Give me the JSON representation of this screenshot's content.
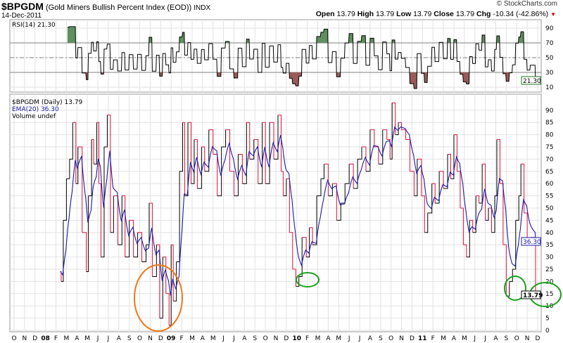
{
  "header": {
    "symbol": "$BPGDM",
    "name": "(Gold Miners Bullish Percent Index (EOD))",
    "exchange": "INDX",
    "date": "14-Dec-2011",
    "copyright": "© StockCharts.com",
    "open_label": "Open",
    "open": "13.79",
    "high_label": "High",
    "high": "13.79",
    "low_label": "Low",
    "low": "13.79",
    "close_label": "Close",
    "close": "13.79",
    "chg_label": "Chg",
    "chg": "-10.34 (-42.86%)"
  },
  "rsi_panel": {
    "legend": "RSI(14) 21.30",
    "value_tag": "21.30",
    "ticks": [
      "90",
      "70",
      "50",
      "30",
      "10"
    ]
  },
  "main_panel": {
    "legend_price": "$BPGDM (Daily) 13.79",
    "legend_ema": "EMA(20) 36.30",
    "legend_volume": "Volume undef",
    "ema_tag": "36.30",
    "close_tag": "13.79"
  },
  "colors": {
    "up": "#000000",
    "down": "#e0103a",
    "ema": "#1a1aa8",
    "overbought": "#5f8f5f",
    "oversold": "#9a5a5a",
    "circle_orange": "#f07818",
    "circle_green": "#1aa01a"
  },
  "chart_data": {
    "type": "line",
    "title": "$BPGDM (Gold Miners Bullish Percent Index (EOD))",
    "x_unit": "months since Oct 2007",
    "x_tick_labels": [
      "O",
      "N",
      "D",
      "08",
      "F",
      "M",
      "A",
      "M",
      "J",
      "J",
      "A",
      "S",
      "O",
      "N",
      "D",
      "09",
      "F",
      "M",
      "A",
      "M",
      "J",
      "J",
      "A",
      "S",
      "O",
      "N",
      "D",
      "10",
      "F",
      "M",
      "A",
      "M",
      "J",
      "J",
      "A",
      "S",
      "O",
      "N",
      "D",
      "11",
      "F",
      "M",
      "A",
      "M",
      "J",
      "J",
      "A",
      "S",
      "O",
      "N",
      "D"
    ],
    "y_ticks": [
      "0",
      "5",
      "10",
      "15",
      "20",
      "25",
      "30",
      "35",
      "40",
      "45",
      "50",
      "55",
      "60",
      "65",
      "70",
      "75",
      "80",
      "85",
      "90"
    ],
    "ylim": [
      0,
      95
    ],
    "rsi_ylim": [
      0,
      100
    ],
    "rsi_levels": [
      30,
      50,
      70
    ],
    "ema_period": 20,
    "rsi_period": 14,
    "series": [
      {
        "name": "$BPGDM",
        "points": [
          [
            4.4,
            24
          ],
          [
            4.5,
            20
          ],
          [
            4.7,
            45
          ],
          [
            5.0,
            62
          ],
          [
            5.3,
            70
          ],
          [
            5.6,
            85
          ],
          [
            5.9,
            60
          ],
          [
            6.1,
            75
          ],
          [
            6.5,
            40
          ],
          [
            6.9,
            24
          ],
          [
            7.1,
            55
          ],
          [
            7.4,
            78
          ],
          [
            7.6,
            68
          ],
          [
            7.9,
            85
          ],
          [
            8.1,
            60
          ],
          [
            8.3,
            30
          ],
          [
            8.6,
            75
          ],
          [
            8.9,
            88
          ],
          [
            9.2,
            40
          ],
          [
            9.5,
            55
          ],
          [
            9.9,
            35
          ],
          [
            10.3,
            55
          ],
          [
            10.6,
            30
          ],
          [
            11,
            45
          ],
          [
            11.4,
            30
          ],
          [
            11.8,
            40
          ],
          [
            12.2,
            28
          ],
          [
            12.6,
            35
          ],
          [
            12.9,
            52
          ],
          [
            13.2,
            22
          ],
          [
            13.6,
            35
          ],
          [
            13.9,
            5
          ],
          [
            14.2,
            30
          ],
          [
            14.5,
            15
          ],
          [
            14.8,
            2
          ],
          [
            15.0,
            35
          ],
          [
            15.2,
            12
          ],
          [
            15.5,
            28
          ],
          [
            15.8,
            65
          ],
          [
            16.1,
            85
          ],
          [
            16.3,
            55
          ],
          [
            16.6,
            85
          ],
          [
            16.9,
            60
          ],
          [
            17.2,
            78
          ],
          [
            17.5,
            58
          ],
          [
            17.9,
            75
          ],
          [
            18.2,
            65
          ],
          [
            18.6,
            82
          ],
          [
            19,
            72
          ],
          [
            19.4,
            55
          ],
          [
            19.8,
            75
          ],
          [
            20.2,
            82
          ],
          [
            20.6,
            65
          ],
          [
            21,
            55
          ],
          [
            21.4,
            72
          ],
          [
            21.8,
            60
          ],
          [
            22.2,
            85
          ],
          [
            22.5,
            70
          ],
          [
            22.9,
            78
          ],
          [
            23.3,
            60
          ],
          [
            23.7,
            85
          ],
          [
            24,
            60
          ],
          [
            24.4,
            85
          ],
          [
            24.8,
            70
          ],
          [
            25.2,
            88
          ],
          [
            25.5,
            65
          ],
          [
            25.7,
            55
          ],
          [
            26,
            62
          ],
          [
            26.3,
            40
          ],
          [
            26.6,
            25
          ],
          [
            26.9,
            18
          ],
          [
            27.2,
            22
          ],
          [
            27.5,
            38
          ],
          [
            27.9,
            30
          ],
          [
            28.2,
            42
          ],
          [
            28.5,
            35
          ],
          [
            28.9,
            55
          ],
          [
            29.3,
            62
          ],
          [
            29.6,
            68
          ],
          [
            30,
            55
          ],
          [
            30.4,
            60
          ],
          [
            30.8,
            45
          ],
          [
            31.2,
            52
          ],
          [
            31.6,
            60
          ],
          [
            32,
            68
          ],
          [
            32.4,
            58
          ],
          [
            32.8,
            70
          ],
          [
            33.2,
            75
          ],
          [
            33.6,
            65
          ],
          [
            34,
            82
          ],
          [
            34.4,
            75
          ],
          [
            34.8,
            68
          ],
          [
            35.2,
            82
          ],
          [
            35.6,
            78
          ],
          [
            35.9,
            70
          ],
          [
            36.1,
            93
          ],
          [
            36.4,
            80
          ],
          [
            36.7,
            85
          ],
          [
            37,
            82
          ],
          [
            37.4,
            78
          ],
          [
            37.8,
            65
          ],
          [
            38.2,
            55
          ],
          [
            38.5,
            70
          ],
          [
            38.9,
            55
          ],
          [
            39.2,
            40
          ],
          [
            39.5,
            48
          ],
          [
            39.9,
            60
          ],
          [
            40.2,
            52
          ],
          [
            40.6,
            65
          ],
          [
            41,
            58
          ],
          [
            41.4,
            72
          ],
          [
            41.7,
            62
          ],
          [
            42,
            80
          ],
          [
            42.3,
            65
          ],
          [
            42.6,
            50
          ],
          [
            42.9,
            35
          ],
          [
            43.2,
            30
          ],
          [
            43.5,
            45
          ],
          [
            43.8,
            40
          ],
          [
            44.1,
            55
          ],
          [
            44.4,
            52
          ],
          [
            44.7,
            68
          ],
          [
            45,
            45
          ],
          [
            45.3,
            50
          ],
          [
            45.6,
            40
          ],
          [
            45.9,
            55
          ],
          [
            46.1,
            78
          ],
          [
            46.4,
            60
          ],
          [
            46.7,
            35
          ],
          [
            47,
            14
          ],
          [
            47.3,
            20
          ],
          [
            47.6,
            25
          ],
          [
            47.9,
            45
          ],
          [
            48.2,
            55
          ],
          [
            48.4,
            68
          ],
          [
            48.7,
            48
          ],
          [
            49,
            35
          ],
          [
            49.3,
            38
          ],
          [
            49.8,
            13.79
          ]
        ]
      }
    ],
    "annotations": [
      {
        "shape": "ellipse",
        "color": "orange",
        "around": "Nov-Dec 2008 low"
      },
      {
        "shape": "ellipse",
        "color": "green",
        "around": "Feb 2010 low"
      },
      {
        "shape": "ellipse",
        "color": "green",
        "around": "Oct 2011 low"
      },
      {
        "shape": "ellipse",
        "color": "green",
        "around": "Dec 2011 last value"
      }
    ]
  }
}
